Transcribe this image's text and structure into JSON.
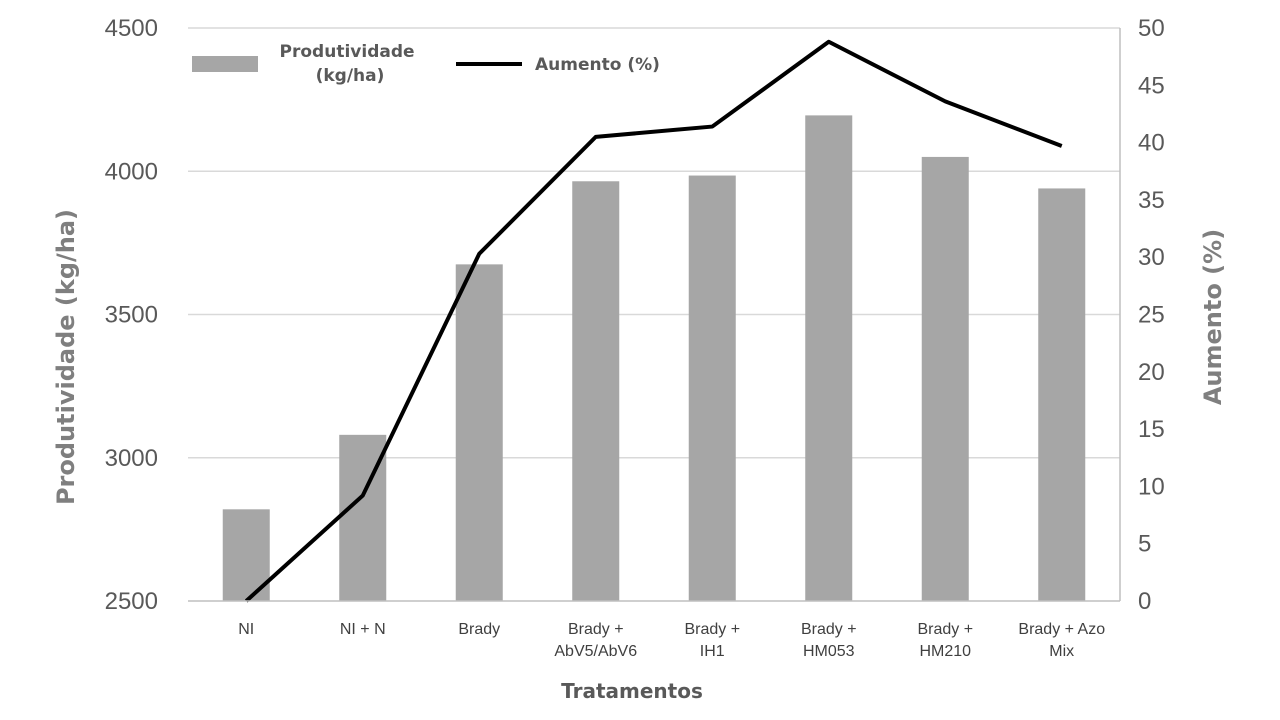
{
  "chart_data": {
    "type": "bar",
    "categories": [
      [
        "NI"
      ],
      [
        "NI + N"
      ],
      [
        "Brady"
      ],
      [
        "Brady +",
        "AbV5/AbV6"
      ],
      [
        "Brady +",
        "IH1"
      ],
      [
        "Brady +",
        "HM053"
      ],
      [
        "Brady +",
        "HM210"
      ],
      [
        "Brady + Azo",
        "Mix"
      ]
    ],
    "series": [
      {
        "name": "Produtividade (kg/ha)",
        "legend_lines": [
          "Produtividade",
          "(kg/ha)"
        ],
        "type": "bar",
        "axis": "left",
        "color": "#a6a6a6",
        "values": [
          2820,
          3080,
          3675,
          3965,
          3985,
          4195,
          4050,
          3940
        ]
      },
      {
        "name": "Aumento (%)",
        "type": "line",
        "axis": "right",
        "color": "#000000",
        "values": [
          0,
          9.2,
          30.3,
          40.5,
          41.4,
          48.8,
          43.6,
          39.7
        ]
      }
    ],
    "xlabel": "Tratamentos",
    "ylabel": "Produtividade (kg/ha)",
    "y2label": "Aumento (%)",
    "ylim": [
      2500,
      4500
    ],
    "yticks": [
      2500,
      3000,
      3500,
      4000,
      4500
    ],
    "y2lim": [
      0,
      50
    ],
    "y2ticks": [
      0,
      5,
      10,
      15,
      20,
      25,
      30,
      35,
      40,
      45,
      50
    ],
    "grid": true,
    "legend": "top-left"
  }
}
